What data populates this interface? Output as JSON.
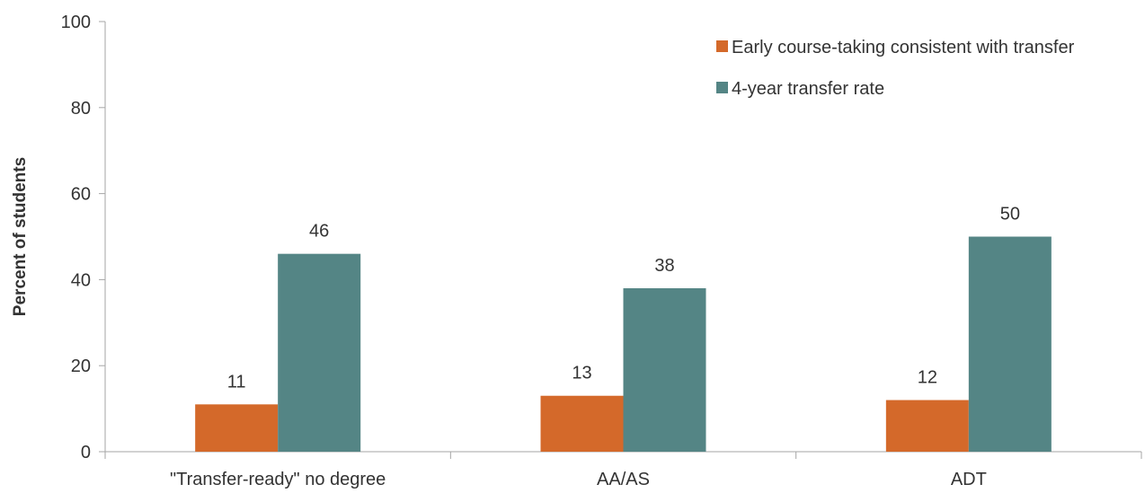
{
  "chart_data": {
    "type": "bar",
    "categories": [
      "\"Transfer-ready\" no degree",
      "AA/AS",
      "ADT"
    ],
    "series": [
      {
        "name": "Early course-taking consistent with transfer",
        "values": [
          11,
          13,
          12
        ],
        "color": "#d4692a"
      },
      {
        "name": "4-year transfer rate",
        "values": [
          46,
          38,
          50
        ],
        "color": "#548585"
      }
    ],
    "data_labels": [
      [
        "11",
        "13",
        "12"
      ],
      [
        "46",
        "38",
        "50"
      ]
    ],
    "title": "",
    "xlabel": "",
    "ylabel": "Percent of students",
    "ylim": [
      0,
      100
    ],
    "yticks": [
      0,
      20,
      40,
      60,
      80,
      100
    ],
    "grid": false,
    "legend_position": "top-right",
    "axis_color": "#a6a6a6"
  }
}
